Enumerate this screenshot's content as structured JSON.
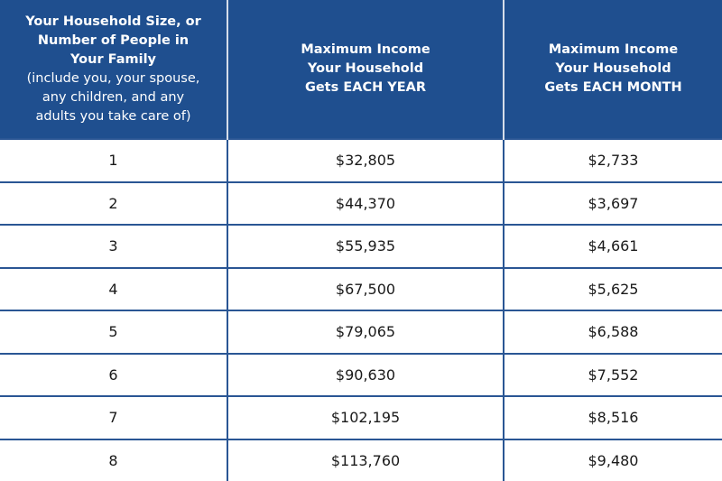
{
  "table": {
    "header": [
      {
        "title": "Your Household Size, or Number of People in Your Family",
        "note": "(include you, your spouse, any children, and any adults you take care of)"
      },
      {
        "title": "Maximum Income Your Household Gets",
        "emphasis": "EACH YEAR"
      },
      {
        "title": "Maximum Income Your Household Gets",
        "emphasis": "EACH MONTH"
      }
    ],
    "rows": [
      [
        "1",
        "$32,805",
        "$2,733"
      ],
      [
        "2",
        "$44,370",
        "$3,697"
      ],
      [
        "3",
        "$55,935",
        "$4,661"
      ],
      [
        "4",
        "$67,500",
        "$5,625"
      ],
      [
        "5",
        "$79,065",
        "$6,588"
      ],
      [
        "6",
        "$90,630",
        "$7,552"
      ],
      [
        "7",
        "$102,195",
        "$8,516"
      ],
      [
        "8",
        "$113,760",
        "$9,480"
      ]
    ]
  }
}
